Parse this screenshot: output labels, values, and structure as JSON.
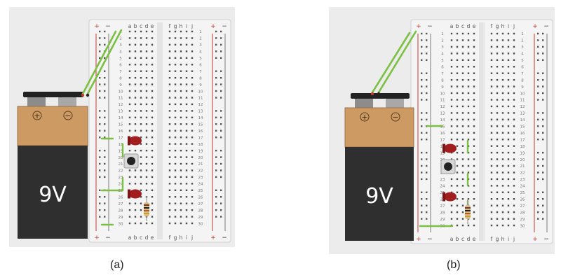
{
  "figures": [
    {
      "id": "a",
      "caption": "(a)",
      "battery": {
        "label": "9V",
        "plus": "+",
        "minus": "−"
      },
      "rail_labels": {
        "plus": "+",
        "minus": "−"
      },
      "column_labels_left": [
        "a",
        "b",
        "c",
        "d",
        "e"
      ],
      "column_labels_right": [
        "f",
        "g",
        "h",
        "i",
        "j"
      ],
      "row_numbers": [
        "1",
        "2",
        "3",
        "4",
        "5",
        "6",
        "7",
        "8",
        "9",
        "10",
        "11",
        "12",
        "13",
        "14",
        "15",
        "16",
        "17",
        "18",
        "19",
        "20",
        "21",
        "22",
        "23",
        "24",
        "25",
        "26",
        "27",
        "28",
        "29",
        "30"
      ],
      "components": [
        "led",
        "pushbutton",
        "led",
        "resistor"
      ],
      "colors": {
        "wire": "#7bc043",
        "led": "#a21e1e",
        "battery_top": "#cc9a62",
        "battery_body": "#2f2f2f",
        "rail_red": "#c0392b"
      }
    },
    {
      "id": "b",
      "caption": "(b)",
      "battery": {
        "label": "9V",
        "plus": "+",
        "minus": "−"
      },
      "rail_labels": {
        "plus": "+",
        "minus": "−"
      },
      "column_labels_left": [
        "a",
        "b",
        "c",
        "d",
        "e"
      ],
      "column_labels_right": [
        "f",
        "g",
        "h",
        "i",
        "j"
      ],
      "row_numbers": [
        "1",
        "2",
        "3",
        "4",
        "5",
        "6",
        "7",
        "8",
        "9",
        "10",
        "11",
        "12",
        "13",
        "14",
        "15",
        "16",
        "17",
        "18",
        "19",
        "20",
        "21",
        "22",
        "23",
        "24",
        "25",
        "26",
        "27",
        "28",
        "29",
        "30"
      ],
      "components": [
        "led",
        "pushbutton",
        "led",
        "resistor"
      ],
      "colors": {
        "wire": "#7bc043",
        "led": "#a21e1e",
        "battery_top": "#cc9a62",
        "battery_body": "#2f2f2f",
        "rail_red": "#c0392b"
      }
    }
  ]
}
